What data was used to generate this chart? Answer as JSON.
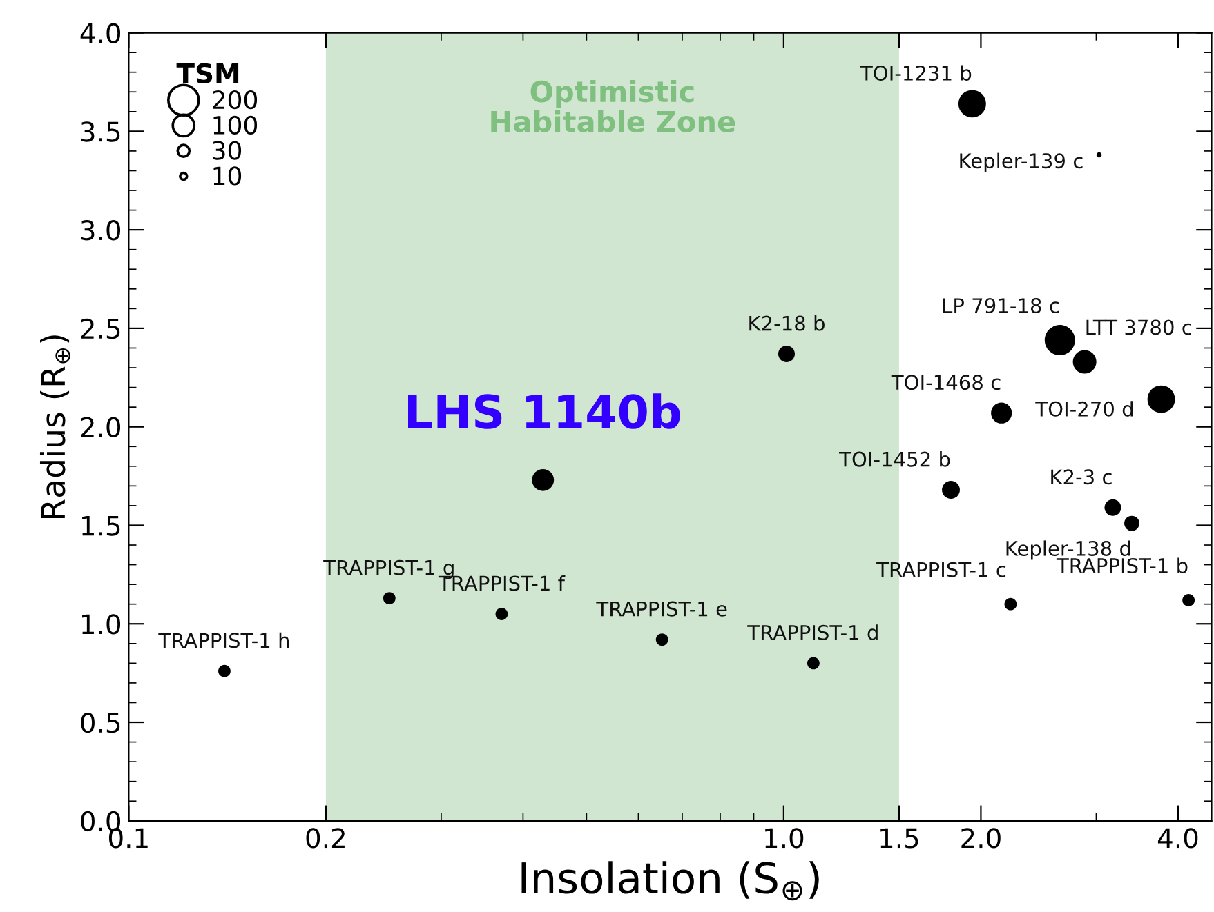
{
  "chart_data": {
    "type": "bubble",
    "xlabel": "Insolation (S$_{⊕}$)",
    "ylabel": "Radius (R$_{⊕}$)",
    "legend_title": "TSM",
    "log": "x",
    "xlim": [
      0.1,
      4.5
    ],
    "ylim": [
      0,
      4.0
    ],
    "xticks": [
      0.1,
      0.2,
      {
        "value": 1,
        "label": "1.0"
      },
      1.5,
      {
        "value": 2,
        "label": "2.0"
      },
      {
        "value": 4,
        "label": "4.0"
      }
    ],
    "yticks": [
      {
        "value": 0,
        "label": "0.0"
      },
      0.5,
      {
        "value": 1,
        "label": "1.0"
      },
      1.5,
      {
        "value": 2,
        "label": "2.0"
      },
      2.5,
      {
        "value": 3,
        "label": "3.0"
      },
      3.5,
      {
        "value": 4,
        "label": "4.0"
      }
    ],
    "grid": false,
    "legend": "top left",
    "marker": "circle",
    "series": [
      {
        "color": "#000000",
        "x": [
          0.14,
          0.25,
          0.371,
          0.652,
          1.11,
          2.22,
          4.15,
          0.429,
          1.01,
          1.8,
          2.15,
          2.64,
          2.88,
          3.77,
          3.18,
          3.4,
          1.94,
          3.03
        ],
        "values": [
          0.76,
          1.13,
          1.05,
          0.92,
          0.8,
          1.1,
          1.12,
          1.73,
          2.37,
          1.68,
          2.07,
          2.44,
          2.33,
          2.14,
          1.59,
          1.51,
          3.64,
          3.38
        ],
        "sizes": [
          33,
          33,
          33,
          33,
          33,
          33,
          33,
          105,
          60,
          70,
          95,
          200,
          120,
          165,
          60,
          50,
          165,
          6
        ]
      }
    ],
    "size_legend": [
      200,
      100,
      30,
      10
    ],
    "bands": [
      {
        "axis": "x",
        "from": 0.2,
        "to": 1.5,
        "label": "Optimistic\nHabitable Zone",
        "color": "#d0e6d1"
      }
    ],
    "annotations": [
      {
        "text": "TRAPPIST-1 h",
        "x": 0.14,
        "y": 0.76
      },
      {
        "text": "TRAPPIST-1 g",
        "x": 0.25,
        "y": 1.13
      },
      {
        "text": "TRAPPIST-1 f",
        "x": 0.371,
        "y": 1.05
      },
      {
        "text": "TRAPPIST-1 e",
        "x": 0.652,
        "y": 0.92
      },
      {
        "text": "TRAPPIST-1 d",
        "x": 1.11,
        "y": 0.8
      },
      {
        "text": "TRAPPIST-1 c",
        "x": 2.22,
        "y": 1.1
      },
      {
        "text": "TRAPPIST-1 b",
        "x": 4.15,
        "y": 1.12
      },
      {
        "text": "LHS 1140b",
        "x": 0.429,
        "y": 1.73
      },
      {
        "text": "K2-18 b",
        "x": 1.01,
        "y": 2.37
      },
      {
        "text": "TOI-1452 b",
        "x": 1.8,
        "y": 1.68
      },
      {
        "text": "TOI-1468 c",
        "x": 2.15,
        "y": 2.07
      },
      {
        "text": "LP 791-18 c",
        "x": 2.64,
        "y": 2.44
      },
      {
        "text": "LTT 3780 c",
        "x": 2.88,
        "y": 2.33
      },
      {
        "text": "TOI-270 d",
        "x": 3.77,
        "y": 2.14
      },
      {
        "text": "K2-3 c",
        "x": 3.18,
        "y": 1.59
      },
      {
        "text": "Kepler-138 d",
        "x": 3.4,
        "y": 1.51
      },
      {
        "text": "TOI-1231 b",
        "x": 1.94,
        "y": 3.64
      },
      {
        "text": "Kepler-139 c",
        "x": 3.03,
        "y": 3.38
      }
    ]
  }
}
